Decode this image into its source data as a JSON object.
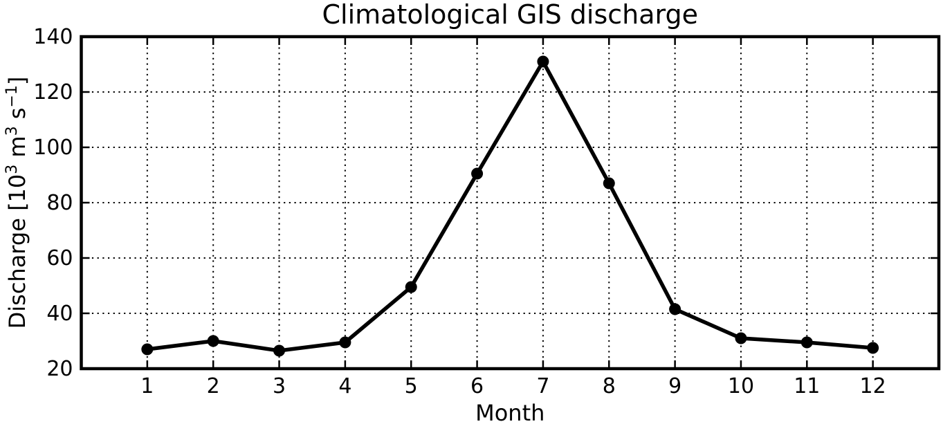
{
  "chart_data": {
    "type": "line",
    "title": "Climatological GIS discharge",
    "xlabel": "Month",
    "ylabel": "Discharge [10³ m³ s⁻¹]",
    "ylabel_parts": [
      {
        "text": "Discharge [10",
        "sup": false
      },
      {
        "text": "3",
        "sup": true
      },
      {
        "text": " m",
        "sup": false
      },
      {
        "text": "3",
        "sup": true
      },
      {
        "text": " s",
        "sup": false
      },
      {
        "text": "−1",
        "sup": true
      },
      {
        "text": "]",
        "sup": false
      }
    ],
    "x": [
      1,
      2,
      3,
      4,
      5,
      6,
      7,
      8,
      9,
      10,
      11,
      12
    ],
    "values": [
      27,
      30,
      26.5,
      29.5,
      49.5,
      90.5,
      131,
      87,
      41.5,
      31,
      29.5,
      27.5
    ],
    "xticks": [
      1,
      2,
      3,
      4,
      5,
      6,
      7,
      8,
      9,
      10,
      11,
      12
    ],
    "xtick_labels": [
      "1",
      "2",
      "3",
      "4",
      "5",
      "6",
      "7",
      "8",
      "9",
      "10",
      "11",
      "12"
    ],
    "yticks": [
      20,
      40,
      60,
      80,
      100,
      120,
      140
    ],
    "ytick_labels": [
      "20",
      "40",
      "60",
      "80",
      "100",
      "120",
      "140"
    ],
    "xlim": [
      0,
      13
    ],
    "ylim": [
      20,
      140
    ],
    "grid": true,
    "grid_style": "dotted",
    "legend": "none",
    "line_color": "#000000",
    "marker": "circle",
    "marker_color": "#000000",
    "frame_color": "#000000",
    "background_color": "#ffffff"
  }
}
